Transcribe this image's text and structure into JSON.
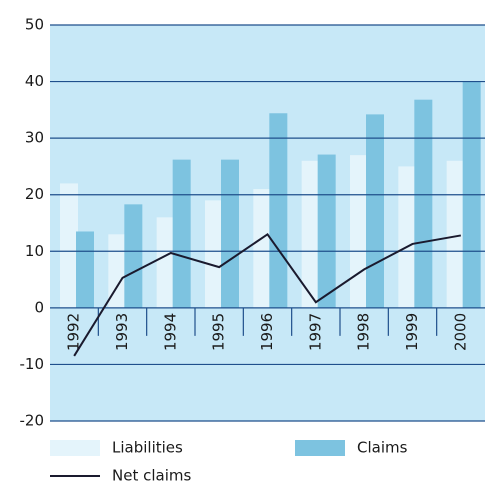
{
  "chart_data": {
    "type": "bar",
    "categories": [
      "1992",
      "1993",
      "1994",
      "1995",
      "1996",
      "1997",
      "1998",
      "1999",
      "2000"
    ],
    "series": [
      {
        "name": "Liabilities",
        "type": "bar",
        "color": "#e4f4fb",
        "values": [
          22,
          13,
          16,
          19,
          21,
          26,
          27,
          25,
          26
        ]
      },
      {
        "name": "Claims",
        "type": "bar",
        "color": "#7dc3e0",
        "values": [
          13.5,
          18.3,
          26.2,
          26.2,
          34.4,
          27.1,
          34.2,
          36.8,
          40
        ]
      },
      {
        "name": "Net claims",
        "type": "line",
        "color": "#1a1a2e",
        "values": [
          -8.5,
          5.3,
          9.7,
          7.2,
          13,
          1,
          6.8,
          11.3,
          12.8
        ]
      }
    ],
    "ylim": [
      -20,
      50
    ],
    "yticks": [
      -20,
      -10,
      0,
      10,
      20,
      30,
      40,
      50
    ],
    "grid": true,
    "background": "#c7e8f7",
    "grid_color": "#1f4f8c"
  }
}
